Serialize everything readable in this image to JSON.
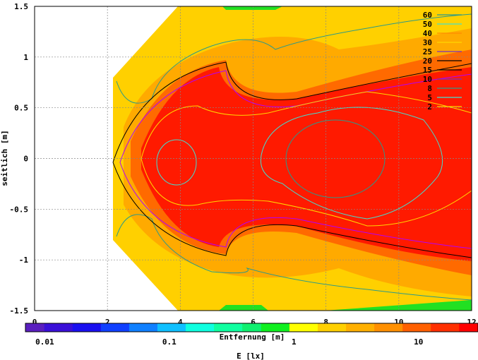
{
  "chart_data": {
    "type": "heatmap",
    "title": "",
    "xlabel": "Entfernung [m]",
    "ylabel": "seitlich [m]",
    "colorbar_label": "E [lx]",
    "xlim": [
      0,
      12
    ],
    "ylim": [
      -1.5,
      1.5
    ],
    "x_ticks": [
      "0",
      "2",
      "4",
      "6",
      "8",
      "10",
      "12"
    ],
    "x_tick_values": [
      0,
      2,
      4,
      6,
      8,
      10,
      12
    ],
    "y_ticks": [
      "1.5",
      "1",
      "0.5",
      "0",
      "-0.5",
      "-1",
      "-1.5"
    ],
    "y_tick_values": [
      1.5,
      1,
      0.5,
      0,
      -0.5,
      -1,
      -1.5
    ],
    "colorbar_ticks": [
      "0.01",
      "0.1",
      "1",
      "10"
    ],
    "colorbar_tick_values": [
      0.01,
      0.1,
      1,
      10
    ],
    "colorbar_range": [
      0.007,
      30
    ],
    "colorbar_scale": "log",
    "grid": true,
    "legend_placement": "top-right",
    "contour_levels": [
      {
        "label": "60",
        "color": "#2a9a8a"
      },
      {
        "label": "50",
        "color": "#40e0d0"
      },
      {
        "label": "40",
        "color": "#ff8c00"
      },
      {
        "label": "30",
        "color": "#ffd700"
      },
      {
        "label": "25",
        "color": "#7b2fbf"
      },
      {
        "label": "20",
        "color": "#000000"
      },
      {
        "label": "15",
        "color": "#000000"
      },
      {
        "label": "10",
        "color": "#7b2fbf"
      },
      {
        "label": "8",
        "color": "#2a9a8a"
      },
      {
        "label": "5",
        "color": "#40e0d0"
      },
      {
        "label": "2",
        "color": "#ffd700"
      }
    ]
  }
}
